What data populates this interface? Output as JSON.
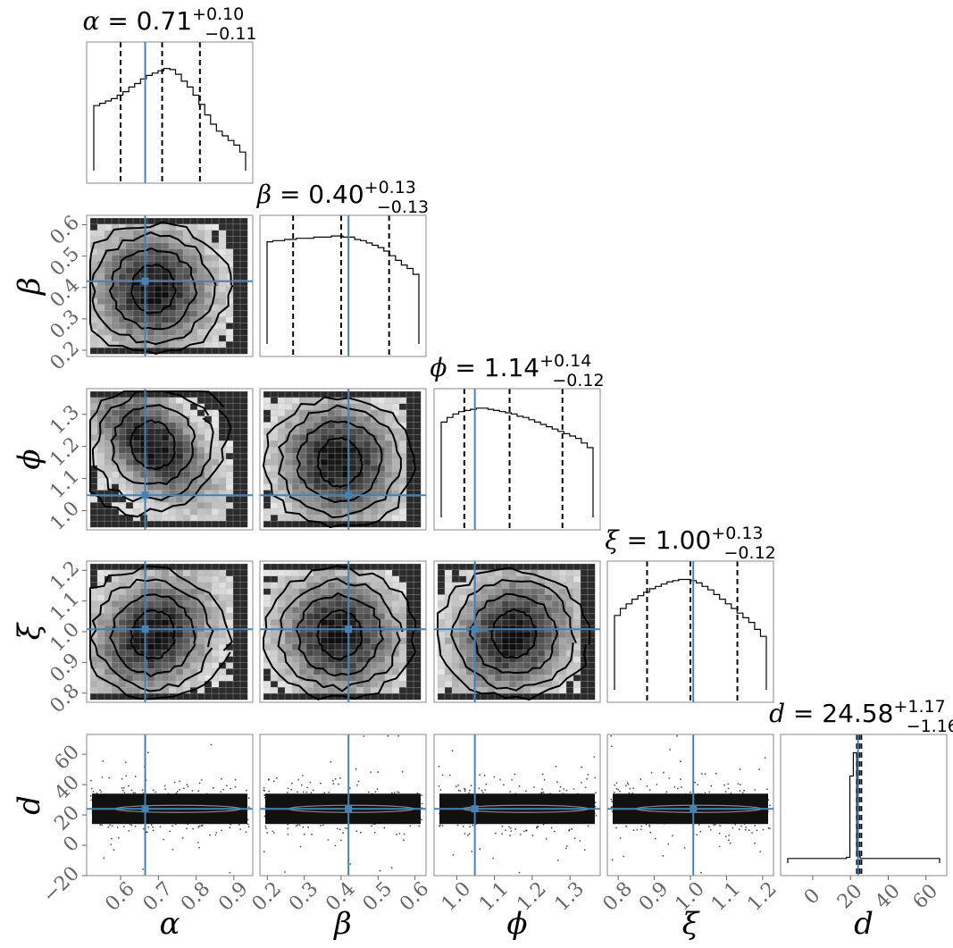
{
  "chart_data": {
    "type": "corner",
    "parameters": [
      {
        "symbol": "α",
        "label": "α",
        "median": "0.71",
        "plus": "+0.10",
        "minus": "−0.11",
        "truth": 0.665,
        "q16": 0.6,
        "q50": 0.71,
        "q84": 0.81,
        "range": [
          0.51,
          0.95
        ],
        "ticks": [
          0.6,
          0.7,
          0.8,
          0.9
        ],
        "tick_labels": [
          "0.6",
          "0.7",
          "0.8",
          "0.9"
        ],
        "hist": [
          0.56,
          0.58,
          0.6,
          0.62,
          0.65,
          0.68,
          0.72,
          0.75,
          0.79,
          0.82,
          0.84,
          0.86,
          0.88,
          0.87,
          0.83,
          0.77,
          0.72,
          0.65,
          0.57,
          0.48,
          0.4,
          0.34,
          0.3,
          0.26,
          0.22,
          0.16
        ]
      },
      {
        "symbol": "β",
        "label": "β",
        "median": "0.40",
        "plus": "+0.13",
        "minus": "−0.13",
        "truth": 0.42,
        "q16": 0.27,
        "q50": 0.4,
        "q84": 0.53,
        "range": [
          0.18,
          0.63
        ],
        "ticks": [
          0.2,
          0.3,
          0.4,
          0.5,
          0.6
        ],
        "tick_labels": [
          "0.2",
          "0.3",
          "0.4",
          "0.5",
          "0.6"
        ],
        "hist": [
          0.88,
          0.89,
          0.89,
          0.9,
          0.9,
          0.91,
          0.91,
          0.91,
          0.92,
          0.92,
          0.92,
          0.93,
          0.93,
          0.92,
          0.92,
          0.9,
          0.89,
          0.87,
          0.85,
          0.83,
          0.8,
          0.76,
          0.72,
          0.68,
          0.65,
          0.6
        ]
      },
      {
        "symbol": "ϕ",
        "label": "ϕ",
        "median": "1.14",
        "plus": "+0.14",
        "minus": "−0.12",
        "truth": 1.048,
        "q16": 1.02,
        "q50": 1.14,
        "q84": 1.28,
        "range": [
          0.94,
          1.38
        ],
        "ticks": [
          1.0,
          1.1,
          1.2,
          1.3
        ],
        "tick_labels": [
          "1.0",
          "1.1",
          "1.2",
          "1.3"
        ],
        "hist": [
          0.82,
          0.86,
          0.89,
          0.91,
          0.92,
          0.93,
          0.94,
          0.94,
          0.93,
          0.92,
          0.91,
          0.9,
          0.89,
          0.87,
          0.86,
          0.84,
          0.82,
          0.8,
          0.78,
          0.76,
          0.74,
          0.72,
          0.7,
          0.68,
          0.64,
          0.6
        ]
      },
      {
        "symbol": "ξ",
        "label": "ξ",
        "median": "1.00",
        "plus": "+0.13",
        "minus": "−0.12",
        "truth": 1.008,
        "q16": 0.88,
        "q50": 1.0,
        "q84": 1.13,
        "range": [
          0.77,
          1.23
        ],
        "ticks": [
          0.8,
          0.9,
          1.0,
          1.1,
          1.2
        ],
        "tick_labels": [
          "0.8",
          "0.9",
          "1.0",
          "1.1",
          "1.2"
        ],
        "hist": [
          0.64,
          0.7,
          0.74,
          0.78,
          0.81,
          0.84,
          0.87,
          0.89,
          0.91,
          0.93,
          0.94,
          0.95,
          0.95,
          0.94,
          0.92,
          0.89,
          0.86,
          0.82,
          0.78,
          0.74,
          0.7,
          0.66,
          0.62,
          0.58,
          0.52,
          0.46
        ]
      },
      {
        "symbol": "d",
        "label": "d",
        "median": "24.58",
        "plus": "+1.17",
        "minus": "−1.16",
        "truth": 24.0,
        "q16": 23.42,
        "q50": 24.58,
        "q84": 25.75,
        "range": [
          -17,
          71
        ],
        "ticks": [
          0,
          20,
          40,
          60
        ],
        "tick_labels": [
          "0",
          "20",
          "40",
          "60"
        ],
        "hist": [
          0.04,
          0.04,
          0.04,
          0.04,
          0.04,
          0.04,
          0.04,
          0.04,
          0.04,
          0.04,
          0.04,
          0.04,
          0.04,
          0.04,
          0.04,
          0.04,
          0.04,
          0.05,
          0.75,
          0.95,
          0.06,
          0.04,
          0.04,
          0.04,
          0.04,
          0.04,
          0.04,
          0.04,
          0.04,
          0.04,
          0.04,
          0.04,
          0.04,
          0.04,
          0.04,
          0.04,
          0.04,
          0.04,
          0.04,
          0.04,
          0.04,
          0.04,
          0.04,
          0.04
        ]
      }
    ],
    "d_axis": {
      "range": [
        -20,
        73
      ],
      "ticks": [
        -20,
        0,
        20,
        40,
        60
      ],
      "tick_labels": [
        "−20",
        "0",
        "20",
        "40",
        "60"
      ]
    },
    "truth_color": "#4682b4",
    "quantile_line_style": "dashed"
  }
}
